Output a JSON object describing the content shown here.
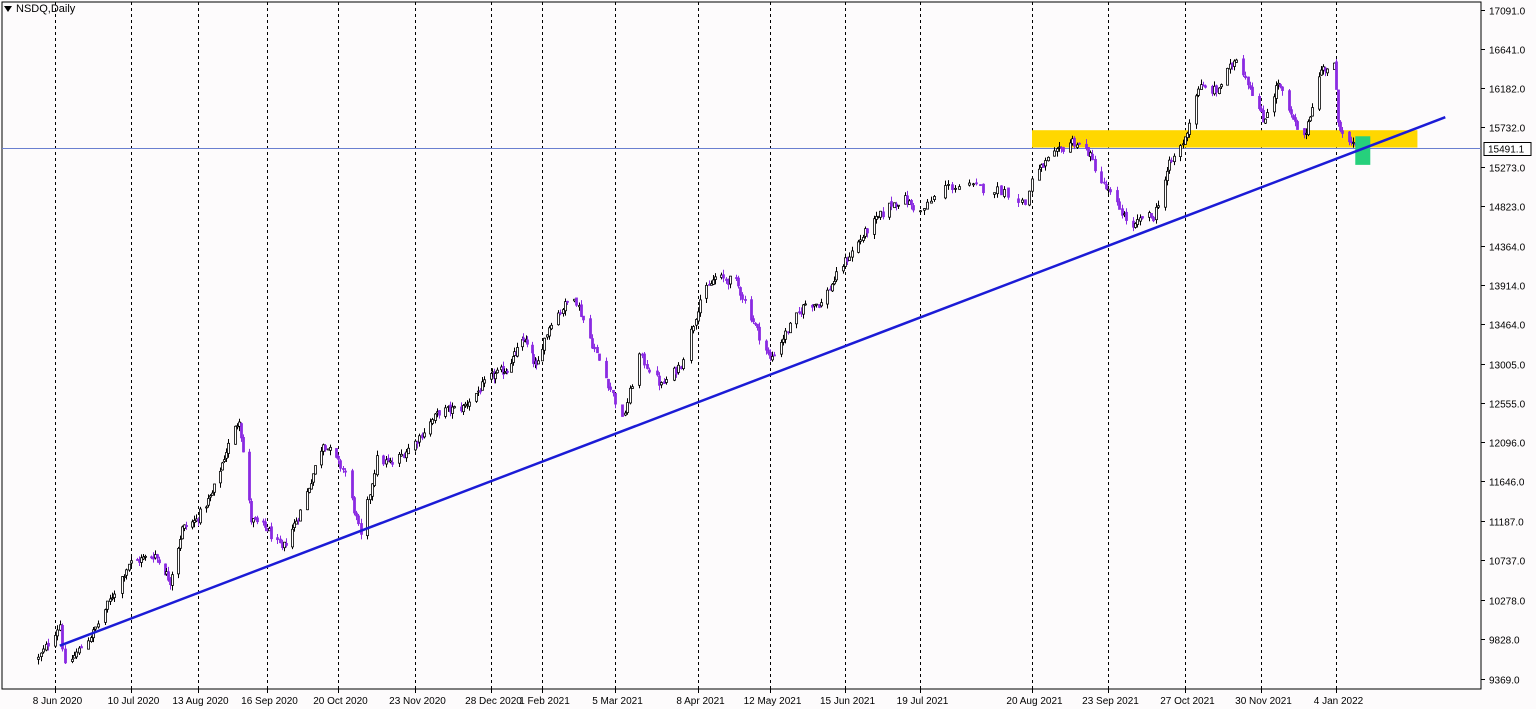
{
  "chart_data": {
    "type": "candlestick",
    "title": "NSDQ,Daily",
    "ylim": [
      9250,
      17180
    ],
    "y_ticks": [
      9369.0,
      9828.0,
      10278.0,
      10737.0,
      11187.0,
      11646.0,
      12096.0,
      12555.0,
      13005.0,
      13464.0,
      13914.0,
      14364.0,
      14823.0,
      15273.0,
      15732.0,
      16182.0,
      16641.0,
      17091.0
    ],
    "y_tick_labels": [
      "9369.0",
      "9828.0",
      "10278.0",
      "10737.0",
      "11187.0",
      "11646.0",
      "12096.0",
      "12555.0",
      "13005.0",
      "13464.0",
      "13914.0",
      "14364.0",
      "14823.0",
      "15273.0",
      "15732.0",
      "16182.0",
      "16641.0",
      "17091.0"
    ],
    "x_ticks": [
      "2020-06-08",
      "2020-07-10",
      "2020-08-13",
      "2020-09-16",
      "2020-10-20",
      "2020-11-23",
      "2020-12-28",
      "2021-02-01",
      "2021-03-05",
      "2021-04-08",
      "2021-05-12",
      "2021-06-15",
      "2021-07-19",
      "2021-08-20",
      "2021-09-23",
      "2021-10-27",
      "2021-11-30",
      "2022-01-04"
    ],
    "x_tick_labels": [
      "8 Jun 2020",
      "10 Jul 2020",
      "13 Aug 2020",
      "16 Sep 2020",
      "20 Oct 2020",
      "23 Nov 2020",
      "28 Dec 2020",
      "1 Feb 2021",
      "5 Mar 2021",
      "8 Apr 2021",
      "12 May 2021",
      "15 Jun 2021",
      "19 Jul 2021",
      "20 Aug 2021",
      "23 Sep 2021",
      "27 Oct 2021",
      "30 Nov 2021",
      "4 Jan 2022"
    ],
    "grid": "vertical dashed",
    "current_price": 15491.1,
    "current_price_label": "15491.1",
    "series_path": [
      [
        "2020-06-01",
        9600
      ],
      [
        "2020-06-10",
        10000
      ],
      [
        "2020-06-12",
        9500
      ],
      [
        "2020-06-24",
        9900
      ],
      [
        "2020-07-09",
        10700
      ],
      [
        "2020-07-22",
        10800
      ],
      [
        "2020-07-30",
        10500
      ],
      [
        "2020-08-05",
        11100
      ],
      [
        "2020-08-12",
        11200
      ],
      [
        "2020-08-20",
        11500
      ],
      [
        "2020-08-27",
        12000
      ],
      [
        "2020-09-02",
        12380
      ],
      [
        "2020-09-08",
        11200
      ],
      [
        "2020-09-16",
        11100
      ],
      [
        "2020-09-23",
        10850
      ],
      [
        "2020-10-02",
        11300
      ],
      [
        "2020-10-13",
        12100
      ],
      [
        "2020-10-23",
        11750
      ],
      [
        "2020-10-30",
        11000
      ],
      [
        "2020-11-06",
        11900
      ],
      [
        "2020-11-13",
        11850
      ],
      [
        "2020-11-23",
        12100
      ],
      [
        "2020-12-04",
        12450
      ],
      [
        "2020-12-15",
        12500
      ],
      [
        "2020-12-28",
        12850
      ],
      [
        "2021-01-08",
        12950
      ],
      [
        "2021-01-20",
        13300
      ],
      [
        "2021-01-28",
        12950
      ],
      [
        "2021-02-05",
        13500
      ],
      [
        "2021-02-15",
        13800
      ],
      [
        "2021-02-22",
        13300
      ],
      [
        "2021-03-04",
        12650
      ],
      [
        "2021-03-08",
        12350
      ],
      [
        "2021-03-15",
        13100
      ],
      [
        "2021-03-24",
        12750
      ],
      [
        "2021-04-01",
        13000
      ],
      [
        "2021-04-09",
        13750
      ],
      [
        "2021-04-16",
        14000
      ],
      [
        "2021-04-26",
        13950
      ],
      [
        "2021-05-04",
        13500
      ],
      [
        "2021-05-12",
        13050
      ],
      [
        "2021-05-19",
        13350
      ],
      [
        "2021-05-28",
        13700
      ],
      [
        "2021-06-04",
        13700
      ],
      [
        "2021-06-14",
        14150
      ],
      [
        "2021-06-25",
        14550
      ],
      [
        "2021-07-06",
        14850
      ],
      [
        "2021-07-12",
        14900
      ],
      [
        "2021-07-19",
        14750
      ],
      [
        "2021-07-26",
        15050
      ],
      [
        "2021-08-02",
        15050
      ],
      [
        "2021-08-12",
        15000
      ],
      [
        "2021-08-18",
        14850
      ],
      [
        "2021-08-20",
        15150
      ],
      [
        "2021-08-27",
        15350
      ],
      [
        "2021-09-07",
        15580
      ],
      [
        "2021-09-14",
        15450
      ],
      [
        "2021-09-20",
        15100
      ],
      [
        "2021-09-28",
        14800
      ],
      [
        "2021-10-04",
        14550
      ],
      [
        "2021-10-08",
        14700
      ],
      [
        "2021-10-13",
        14700
      ],
      [
        "2021-10-20",
        15300
      ],
      [
        "2021-10-27",
        15600
      ],
      [
        "2021-11-02",
        16200
      ],
      [
        "2021-11-10",
        16150
      ],
      [
        "2021-11-19",
        16550
      ],
      [
        "2021-11-26",
        16150
      ],
      [
        "2021-12-01",
        15800
      ],
      [
        "2021-12-08",
        16250
      ],
      [
        "2021-12-14",
        15850
      ],
      [
        "2021-12-20",
        15600
      ],
      [
        "2021-12-28",
        16400
      ],
      [
        "2022-01-03",
        16450
      ],
      [
        "2022-01-05",
        15800
      ],
      [
        "2022-01-10",
        15550
      ],
      [
        "2022-01-13",
        15491.1
      ]
    ],
    "annotations": {
      "resistance_zone": {
        "x_start": "2021-08-20",
        "x_end": "2022-02-11",
        "y_low": 15500,
        "y_high": 15700,
        "color": "#ffd700"
      },
      "support_box": {
        "x_start": "2022-01-13",
        "x_end": "2022-01-20",
        "y_low": 15300,
        "y_high": 15630,
        "color": "#26d07c"
      },
      "trendline": {
        "from": [
          "2020-06-10",
          9750
        ],
        "to": [
          "2022-02-24",
          15850
        ],
        "color": "#1b1bd6"
      }
    },
    "colors": {
      "bull": "#000000",
      "bear": "#8a2be2",
      "background": "#fdfbfc",
      "hline": "#6a7fd0"
    }
  }
}
